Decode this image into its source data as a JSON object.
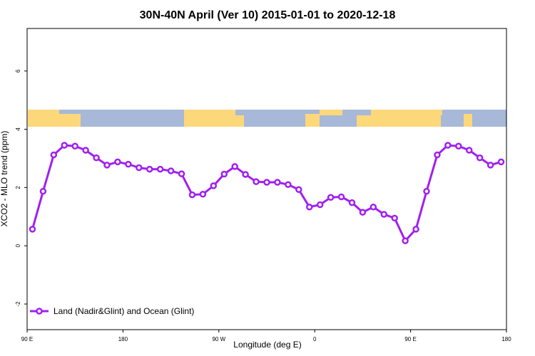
{
  "chart_data": {
    "type": "line",
    "title": "30N-40N April (Ver 10)   2015-01-01 to 2020-12-18",
    "x_label": "Longitude (deg E)",
    "y_label": "XCO2 - MLO trend (ppm)",
    "xlim": [
      90,
      540
    ],
    "xticks": [
      {
        "value": 90,
        "label": "90 E"
      },
      {
        "value": 180,
        "label": "180"
      },
      {
        "value": 270,
        "label": "90 W"
      },
      {
        "value": 360,
        "label": "0"
      },
      {
        "value": 450,
        "label": "90 E"
      },
      {
        "value": 540,
        "label": "180"
      }
    ],
    "ylim": [
      -2.88,
      7.46
    ],
    "yticks": [
      -2,
      0,
      2,
      4,
      6
    ],
    "legend_position": "bottom-left",
    "x": [
      95,
      105,
      115,
      125,
      135,
      145,
      155,
      165,
      175,
      185,
      195,
      205,
      215,
      225,
      235,
      245,
      255,
      265,
      275,
      285,
      295,
      305,
      315,
      325,
      335,
      345,
      355,
      365,
      375,
      385,
      395,
      405,
      415,
      425,
      435,
      445,
      455,
      465,
      475,
      485,
      495,
      505,
      515,
      525,
      535
    ],
    "series": [
      {
        "name": "Land (Nadir&Glint) and Ocean (Glint)",
        "color": "#a020f0",
        "values": [
          0.57,
          1.87,
          3.12,
          3.45,
          3.42,
          3.28,
          3.02,
          2.77,
          2.88,
          2.8,
          2.68,
          2.63,
          2.63,
          2.57,
          2.47,
          1.75,
          1.77,
          2.06,
          2.46,
          2.72,
          2.45,
          2.2,
          2.18,
          2.18,
          2.1,
          1.93,
          1.33,
          1.41,
          1.66,
          1.68,
          1.48,
          1.15,
          1.33,
          1.08,
          0.95,
          0.17,
          0.57,
          1.87,
          3.12,
          3.45,
          3.42,
          3.28,
          3.02,
          2.77,
          2.88
        ]
      }
    ]
  }
}
